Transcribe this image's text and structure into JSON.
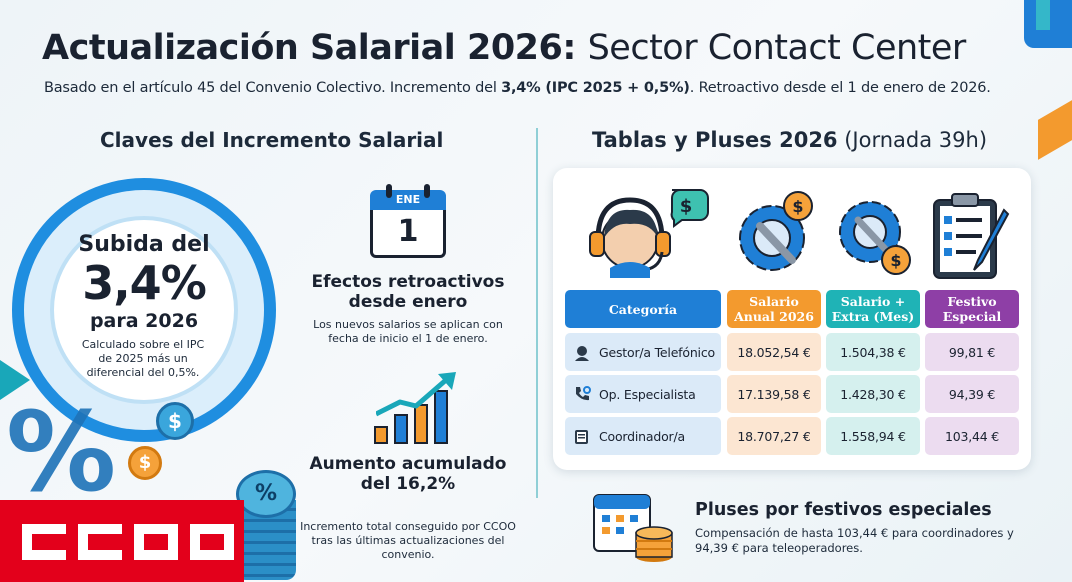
{
  "header": {
    "title_bold": "Actualización Salarial 2026:",
    "title_light": "Sector Contact Center",
    "subtitle_pre": "Basado en el artículo 45 del Convenio Colectivo. Incremento del ",
    "subtitle_bold": "3,4% (IPC 2025 + 0,5%)",
    "subtitle_post": ". Retroactivo desde el 1 de enero de 2026."
  },
  "left": {
    "section_title": "Claves del Incremento Salarial",
    "circle": {
      "line1": "Subida del",
      "big": "3,4%",
      "line3": "para 2026",
      "desc": "Calculado sobre el IPC de 2025 más un diferencial del 0,5%."
    },
    "calendar": {
      "month": "ENE",
      "day": "1"
    },
    "retro": {
      "title": "Efectos retroactivos desde enero",
      "desc": "Los nuevos salarios se aplican con fecha de inicio el 1 de enero."
    },
    "accum": {
      "title": "Aumento acumulado del 16,2%",
      "desc": "Incremento total conseguido por CCOO tras las últimas actualizaciones del convenio."
    },
    "decor": {
      "coin_a": "$",
      "coin_b": "$",
      "percent": "%",
      "stack_symbol": "%"
    }
  },
  "right": {
    "section_title_bold": "Tablas y Pluses 2026",
    "section_title_light": "(Jornada 39h)",
    "icon_labels": {
      "dollar": "$"
    },
    "table": {
      "headers": [
        "Categoría",
        "Salario Anual 2026",
        "Salario + Extra (Mes)",
        "Festivo Especial"
      ],
      "header_colors": [
        "#1f7fd6",
        "#f39a2e",
        "#1fb3b6",
        "#8e3fa6"
      ],
      "rows": [
        {
          "category": "Gestor/a Telefónico",
          "icon": "operator-icon",
          "anual": "18.052,54 €",
          "extra": "1.504,38 €",
          "festivo": "99,81 €"
        },
        {
          "category": "Op. Especialista",
          "icon": "phone-gear-icon",
          "anual": "17.139,58 €",
          "extra": "1.428,30 €",
          "festivo": "94,39 €"
        },
        {
          "category": "Coordinador/a",
          "icon": "clipboard-icon",
          "anual": "18.707,27 €",
          "extra": "1.558,94 €",
          "festivo": "103,44 €"
        }
      ]
    },
    "pluses": {
      "title": "Pluses por festivos especiales",
      "desc": "Compensación de hasta 103,44 € para coordinadores y 94,39 € para teleoperadores."
    }
  },
  "logo": {
    "text": "CCOO",
    "color": "#e3001b"
  }
}
